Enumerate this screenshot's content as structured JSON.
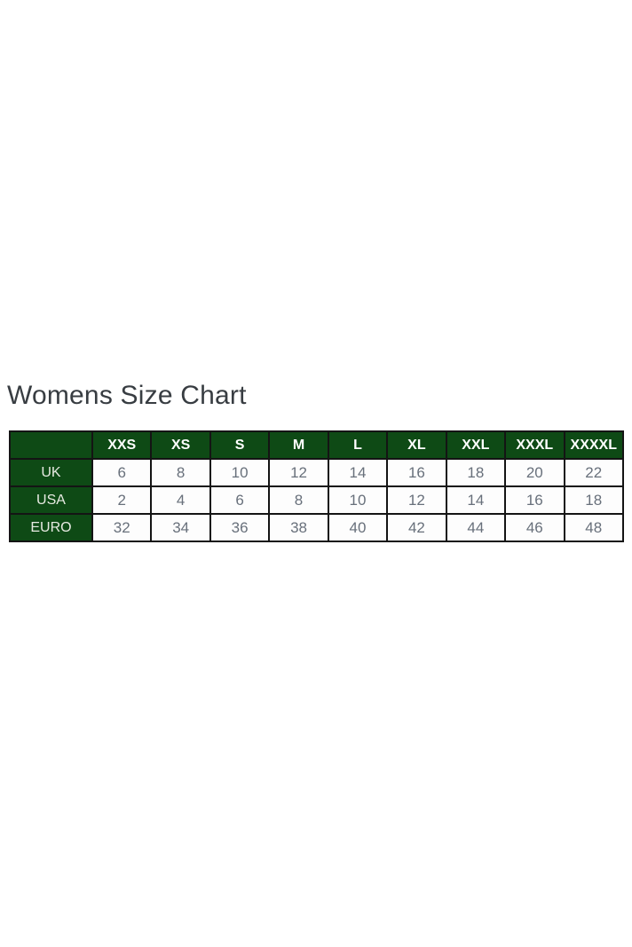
{
  "page": {
    "title": "Womens Size Chart"
  },
  "colors": {
    "header_green": "#0e4a15",
    "border": "#141414",
    "title_text": "#383d42",
    "header_text": "#ffffff",
    "row_label_text": "#e7eae2",
    "cell_text": "#68707b",
    "cell_bg": "#fdfdfd",
    "page_bg": "#ffffff"
  },
  "chart_data": {
    "type": "table",
    "title": "Womens Size Chart",
    "column_headers": [
      "",
      "XXS",
      "XS",
      "S",
      "M",
      "L",
      "XL",
      "XXL",
      "XXXL",
      "XXXXL"
    ],
    "rows": [
      {
        "label": "UK",
        "values": [
          6,
          8,
          10,
          12,
          14,
          16,
          18,
          20,
          22
        ]
      },
      {
        "label": "USA",
        "values": [
          2,
          4,
          6,
          8,
          10,
          12,
          14,
          16,
          18
        ]
      },
      {
        "label": "EURO",
        "values": [
          32,
          34,
          36,
          38,
          40,
          42,
          44,
          46,
          48
        ]
      }
    ]
  }
}
